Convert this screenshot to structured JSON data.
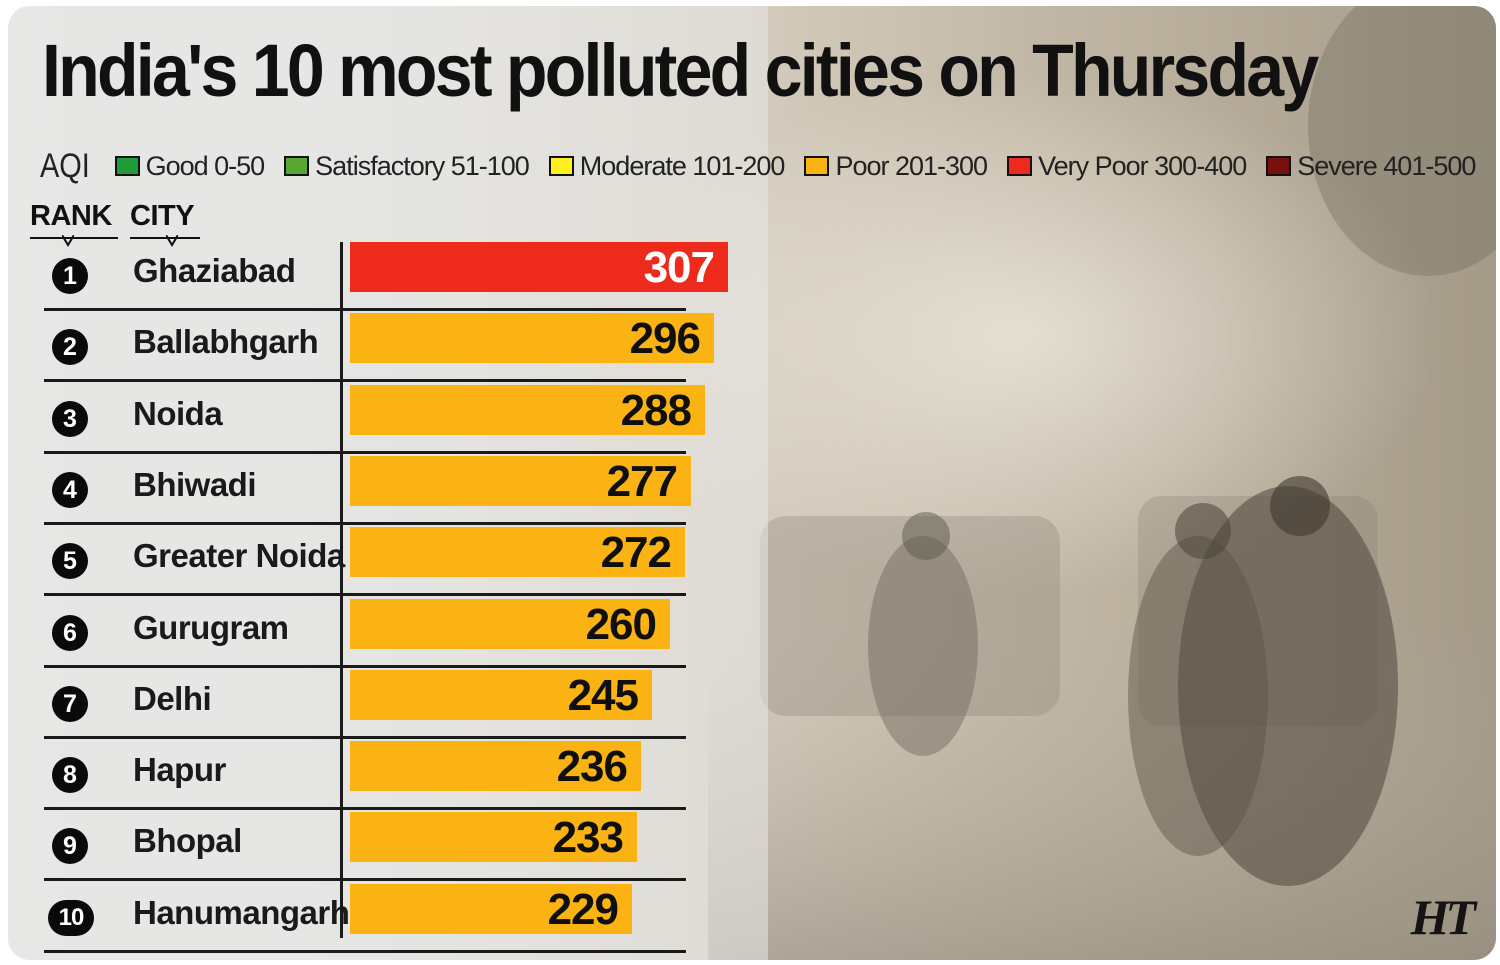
{
  "chart_data": {
    "type": "bar",
    "orientation": "horizontal",
    "title": "India's 10 most polluted cities on Thursday",
    "legend_label": "AQI",
    "legend": [
      {
        "label": "Good 0-50",
        "color": "#1e9b3a"
      },
      {
        "label": "Satisfactory 51-100",
        "color": "#5aa632"
      },
      {
        "label": "Moderate 101-200",
        "color": "#ffee20"
      },
      {
        "label": "Poor 201-300",
        "color": "#fbb313"
      },
      {
        "label": "Very Poor 300-400",
        "color": "#ee2a1c"
      },
      {
        "label": "Severe 401-500",
        "color": "#7a1010"
      }
    ],
    "columns": {
      "rank": "RANK",
      "city": "CITY"
    },
    "ranks": [
      "1",
      "2",
      "3",
      "4",
      "5",
      "6",
      "7",
      "8",
      "9",
      "10"
    ],
    "categories": [
      "Ghaziabad",
      "Ballabhgarh",
      "Noida",
      "Bhiwadi",
      "Greater Noida",
      "Gurugram",
      "Delhi",
      "Hapur",
      "Bhopal",
      "Hanumangarh"
    ],
    "values": [
      307,
      296,
      288,
      277,
      272,
      260,
      245,
      236,
      233,
      229
    ],
    "value_labels": [
      "307",
      "296",
      "288",
      "277",
      "272",
      "260",
      "245",
      "236",
      "233",
      "229"
    ],
    "bar_colors": [
      "#ee2a1c",
      "#fbb313",
      "#fbb313",
      "#fbb313",
      "#fbb313",
      "#fbb313",
      "#fbb313",
      "#fbb313",
      "#fbb313",
      "#fbb313"
    ],
    "grid": false
  },
  "logo": "HT"
}
